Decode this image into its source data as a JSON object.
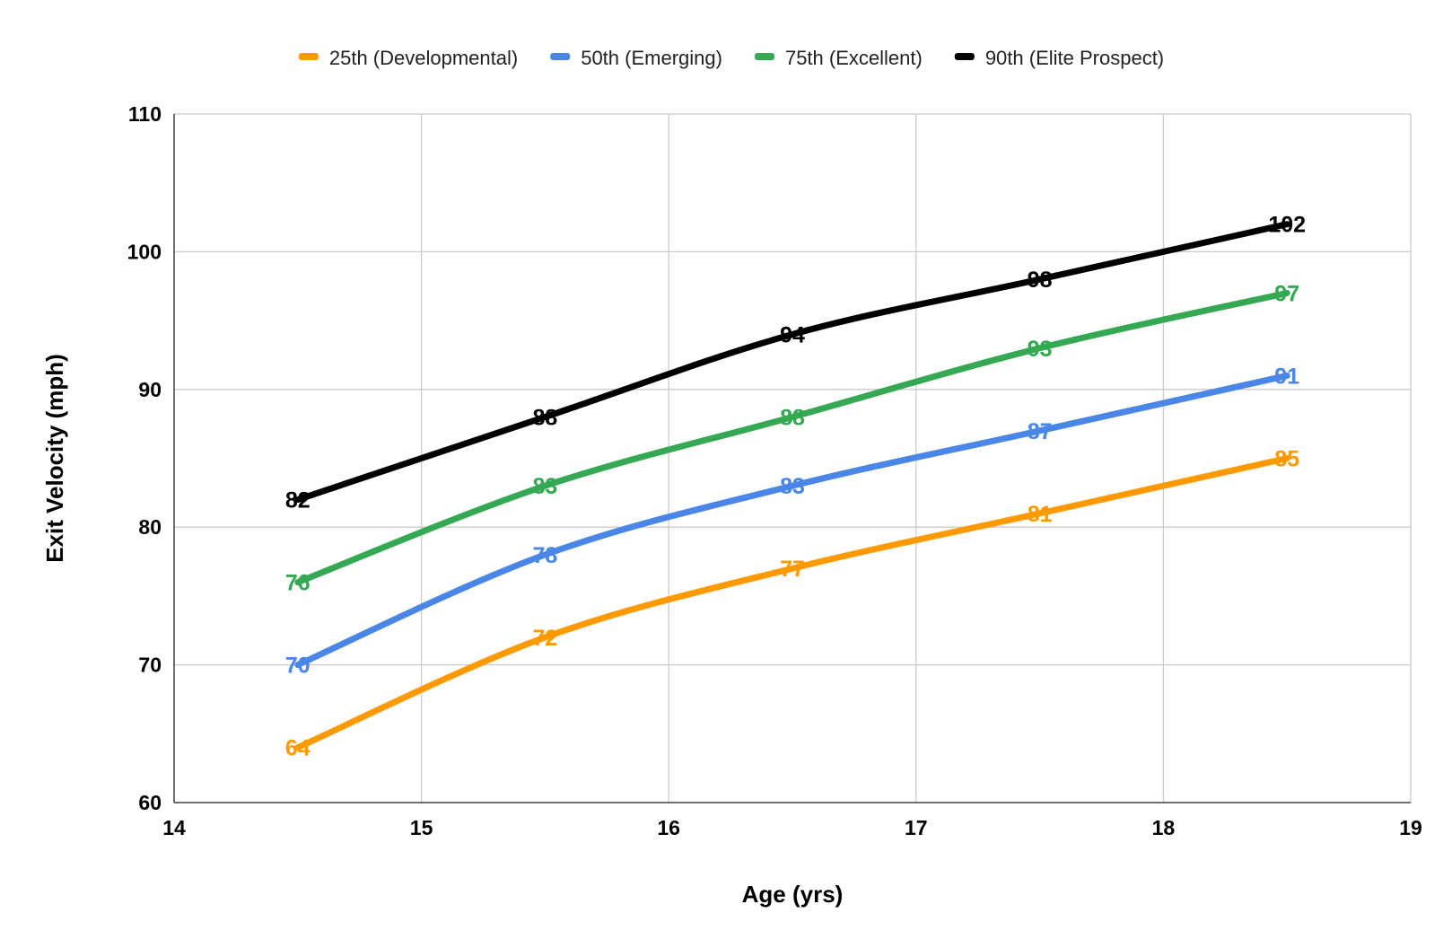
{
  "chart_data": {
    "type": "line",
    "xlabel": "Age (yrs)",
    "ylabel": "Exit Velocity (mph)",
    "xlim": [
      14,
      19
    ],
    "ylim": [
      60,
      110
    ],
    "x_ticks": [
      14,
      15,
      16,
      17,
      18,
      19
    ],
    "y_ticks": [
      60,
      70,
      80,
      90,
      100,
      110
    ],
    "x": [
      14.5,
      15.5,
      16.5,
      17.5,
      18.5
    ],
    "grid": true,
    "legend_position": "top",
    "series": [
      {
        "name": "25th (Developmental)",
        "color": "#ff9900",
        "values": [
          64,
          72,
          77,
          81,
          85
        ]
      },
      {
        "name": "50th (Emerging)",
        "color": "#4a86e8",
        "values": [
          70,
          78,
          83,
          87,
          91
        ]
      },
      {
        "name": "75th (Excellent)",
        "color": "#34a853",
        "values": [
          76,
          83,
          88,
          93,
          97
        ]
      },
      {
        "name": "90th (Elite Prospect)",
        "color": "#000000",
        "values": [
          82,
          88,
          94,
          98,
          102
        ]
      }
    ]
  }
}
